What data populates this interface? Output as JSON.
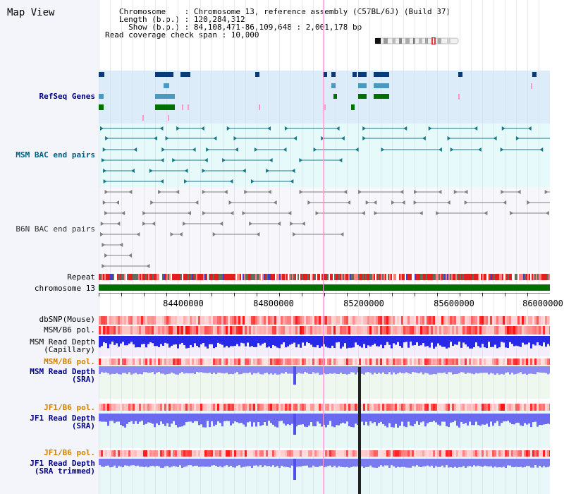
{
  "view": {
    "title": "Map View",
    "info_lines": [
      "   Chromosome    : Chromosome 13, reference assembly (C57BL/6J) (Build 37)",
      "   Length (b.p.) : 120,284,312",
      "     Show (b.p.) : 84,108,471-86,109,648 : 2,001,178 bp",
      "Read coverage check span : 10,000"
    ]
  },
  "tracks": {
    "refseq_genes": "RefSeq Genes",
    "msm_bac": "MSM BAC end pairs",
    "b6n_bac": "B6N BAC end pairs",
    "repeat": "Repeat",
    "chromosome": "chromosome 13",
    "dbsnp": "dbSNP(Mouse)",
    "msm_b6_pol_1": "MSM/B6 pol.",
    "msm_read_depth_cap": "MSM Read Depth\n(Capillary)",
    "msm_b6_pol_2": "MSM/B6 pol.",
    "msm_read_depth_sra": "MSM Read Depth\n(SRA)",
    "jf1_b6_pol_1": "JF1/B6 pol.",
    "jf1_read_depth_sra": "JF1 Read Depth\n(SRA)",
    "jf1_b6_pol_2": "JF1/B6 pol.",
    "jf1_read_depth_trim": "JF1 Read Depth\n(SRA trimmed)"
  },
  "axis": {
    "ticks": [
      "84400000",
      "84800000",
      "85200000",
      "85600000",
      "86000000"
    ],
    "start_bp": 84108471,
    "end_bp": 86109648
  },
  "colors": {
    "refseq_bg": "#dcecf8",
    "msm_bg": "#e6fafa",
    "gene_navy": "#0b3a78",
    "gene_steel": "#4a9ac0",
    "gene_green": "#007000",
    "bac_teal": "#1a7a8a",
    "bac_gray": "#808080",
    "chromosome": "#007000",
    "highlight": "#ff99cc",
    "depth_blue": "#2a2ae0",
    "depth_light": "#7b7bf0"
  }
}
